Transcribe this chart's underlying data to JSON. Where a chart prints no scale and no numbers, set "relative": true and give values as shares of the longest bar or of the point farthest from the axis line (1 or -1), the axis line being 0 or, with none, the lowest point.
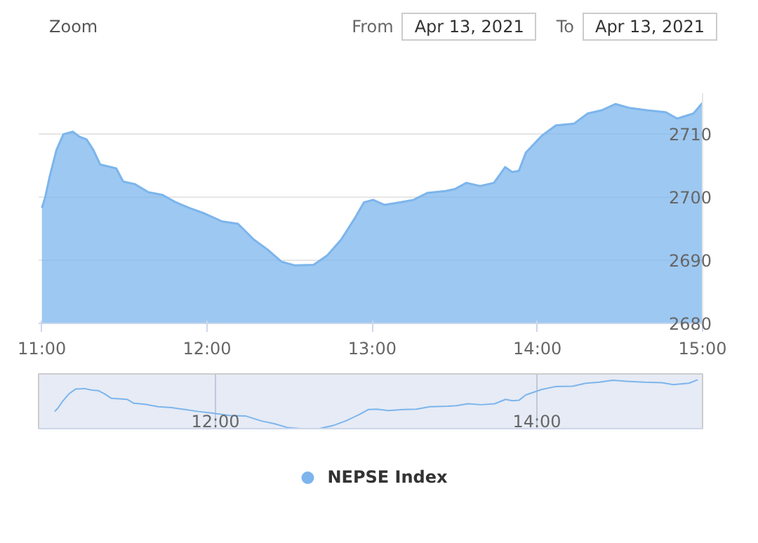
{
  "chart_data": [
    {
      "type": "area",
      "annotations": [
        "Zoom",
        "From",
        "Apr 13, 2021",
        "To",
        "Apr 13, 2021"
      ],
      "x": [
        11.0,
        11.02,
        11.047,
        11.088,
        11.13,
        11.187,
        11.228,
        11.27,
        11.312,
        11.353,
        11.45,
        11.492,
        11.562,
        11.645,
        11.728,
        11.812,
        11.895,
        11.978,
        12.088,
        12.187,
        12.283,
        12.367,
        12.45,
        12.533,
        12.645,
        12.728,
        12.812,
        12.895,
        12.95,
        13.005,
        13.075,
        13.167,
        13.25,
        13.333,
        13.445,
        13.5,
        13.57,
        13.653,
        13.737,
        13.805,
        13.847,
        13.888,
        13.93,
        14.028,
        14.112,
        14.222,
        14.305,
        14.388,
        14.472,
        14.555,
        14.667,
        14.778,
        14.847,
        14.945,
        15.0
      ],
      "series": [
        {
          "name": "NEPSE Index",
          "color": "#7cb5ec",
          "values": [
            2698.3,
            2700,
            2703.3,
            2707.5,
            2710,
            2710.4,
            2709.6,
            2709.2,
            2707.5,
            2705.2,
            2704.6,
            2702.5,
            2702.1,
            2700.8,
            2700.4,
            2699.2,
            2698.3,
            2697.5,
            2696.2,
            2695.8,
            2693.3,
            2691.7,
            2689.8,
            2689.2,
            2689.3,
            2690.8,
            2693.3,
            2696.7,
            2699.2,
            2699.6,
            2698.8,
            2699.2,
            2699.6,
            2700.7,
            2701,
            2701.3,
            2702.3,
            2701.8,
            2702.3,
            2704.8,
            2704,
            2704.2,
            2707.1,
            2709.8,
            2711.4,
            2711.7,
            2713.3,
            2713.8,
            2714.8,
            2714.2,
            2713.8,
            2713.5,
            2712.5,
            2713.3,
            2715
          ]
        }
      ],
      "xlim": [
        10.98,
        15.0
      ],
      "ylim": [
        2680,
        2716.5
      ],
      "xticks": [
        {
          "value": 11,
          "label": "11:00"
        },
        {
          "value": 12,
          "label": "12:00"
        },
        {
          "value": 13,
          "label": "13:00"
        },
        {
          "value": 14,
          "label": "14:00"
        },
        {
          "value": 15,
          "label": "15:00"
        }
      ],
      "yticks": [
        2680,
        2690,
        2700,
        2710
      ],
      "grid": "y",
      "legend": "bottom"
    },
    {
      "type": "line",
      "x": [
        11.0,
        11.02,
        11.047,
        11.088,
        11.13,
        11.187,
        11.228,
        11.27,
        11.312,
        11.353,
        11.45,
        11.492,
        11.562,
        11.645,
        11.728,
        11.812,
        11.895,
        11.978,
        12.088,
        12.187,
        12.283,
        12.367,
        12.45,
        12.533,
        12.645,
        12.728,
        12.812,
        12.895,
        12.95,
        13.005,
        13.075,
        13.167,
        13.25,
        13.333,
        13.445,
        13.5,
        13.57,
        13.653,
        13.737,
        13.805,
        13.847,
        13.888,
        13.93,
        14.028,
        14.112,
        14.222,
        14.305,
        14.388,
        14.472,
        14.555,
        14.667,
        14.778,
        14.847,
        14.945,
        15.0
      ],
      "series": [
        {
          "color": "#7cb5ec",
          "values": [
            0.35,
            0.42,
            0.55,
            0.71,
            0.81,
            0.82,
            0.79,
            0.78,
            0.71,
            0.62,
            0.6,
            0.52,
            0.5,
            0.45,
            0.43,
            0.39,
            0.35,
            0.32,
            0.27,
            0.26,
            0.16,
            0.1,
            0.02,
            0,
            0,
            0.06,
            0.16,
            0.29,
            0.39,
            0.4,
            0.37,
            0.39,
            0.4,
            0.45,
            0.46,
            0.47,
            0.51,
            0.49,
            0.51,
            0.6,
            0.57,
            0.58,
            0.69,
            0.8,
            0.86,
            0.87,
            0.93,
            0.95,
            0.99,
            0.97,
            0.95,
            0.94,
            0.9,
            0.93,
            1
          ]
        }
      ],
      "xlim": [
        10.9,
        15.03
      ],
      "relative": true,
      "xticks": [
        {
          "value": 12,
          "label": "12:00"
        },
        {
          "value": 14,
          "label": "14:00"
        }
      ],
      "tick_labels": "x",
      "grid": "x"
    }
  ]
}
